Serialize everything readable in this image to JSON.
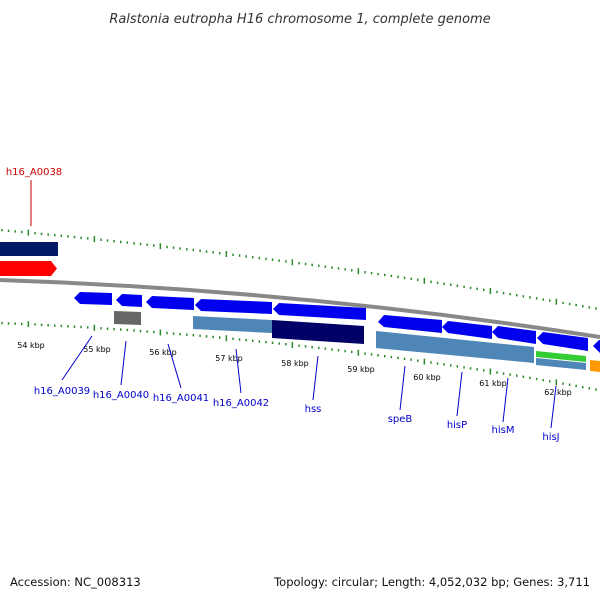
{
  "title": "Ralstonia eutropha H16 chromosome 1, complete genome",
  "footer": {
    "accession": "Accession: NC_008313",
    "summary": "Topology: circular; Length: 4,052,032 bp; Genes: 3,711"
  },
  "scale_labels": [
    "54 kbp",
    "55 kbp",
    "56 kbp",
    "57 kbp",
    "58 kbp",
    "59 kbp",
    "60 kbp",
    "61 kbp",
    "62 kbp"
  ],
  "gene_labels": [
    {
      "text": "h16_A0038",
      "color": "#cc0000"
    },
    {
      "text": "h16_A0039",
      "color": "#0000cc"
    },
    {
      "text": "h16_A0040",
      "color": "#0000cc"
    },
    {
      "text": "h16_A0041",
      "color": "#0000cc"
    },
    {
      "text": "h16_A0042",
      "color": "#0000cc"
    },
    {
      "text": "hss",
      "color": "#0000cc"
    },
    {
      "text": "speB",
      "color": "#0000cc"
    },
    {
      "text": "hisP",
      "color": "#0000cc"
    },
    {
      "text": "hisM",
      "color": "#0000cc"
    },
    {
      "text": "hisJ",
      "color": "#0000cc"
    }
  ],
  "colors": {
    "cds_forward": "#001a66",
    "rna": "#ff0000",
    "cds_reverse": "#0000ee",
    "pseudo": "#666666",
    "feature_light": "#4f86b8",
    "feature_dark": "#000066",
    "feature_green": "#33cc33",
    "feature_orange": "#ff9900",
    "backbone": "#888888",
    "ticks": "#2a8a2a"
  }
}
